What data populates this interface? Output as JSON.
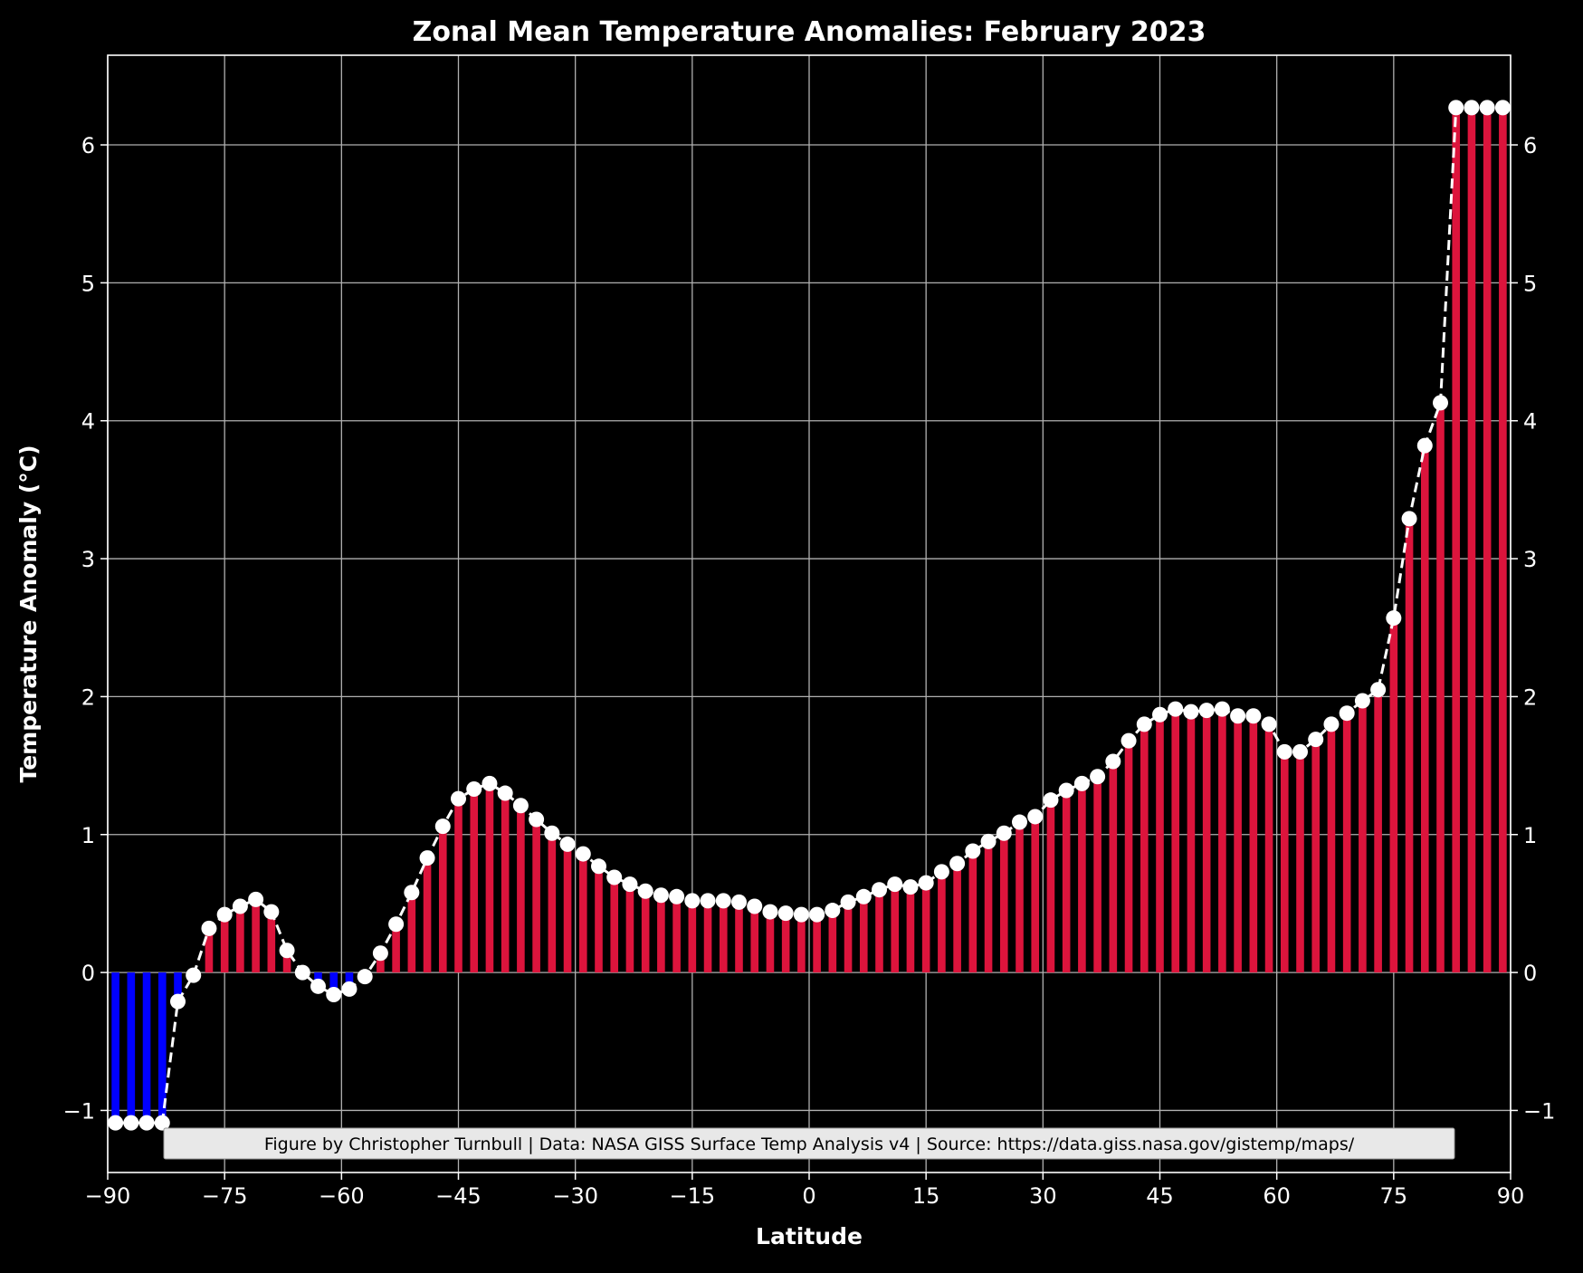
{
  "chart_data": {
    "type": "bar",
    "title": "Zonal Mean Temperature Anomalies: February 2023",
    "xlabel": "Latitude",
    "ylabel": "Temperature Anomaly (°C)",
    "xlim": [
      -90,
      90
    ],
    "ylim": [
      -1.45,
      6.65
    ],
    "grid": true,
    "x_ticks": [
      -90,
      -75,
      -60,
      -45,
      -30,
      -15,
      0,
      15,
      30,
      45,
      60,
      75,
      90
    ],
    "x_tick_labels": [
      "−90",
      "−75",
      "−60",
      "−45",
      "−30",
      "−15",
      "0",
      "15",
      "30",
      "45",
      "60",
      "75",
      "90"
    ],
    "y_ticks": [
      -1,
      0,
      1,
      2,
      3,
      4,
      5,
      6
    ],
    "y_tick_labels": [
      "−1",
      "0",
      "1",
      "2",
      "3",
      "4",
      "5",
      "6"
    ],
    "colors": {
      "positive_bar": "#dc143c",
      "negative_bar": "#0000ff",
      "line": "#ffffff",
      "marker": "#ffffff",
      "grid": "#b0b0b0",
      "background": "#000000"
    },
    "series": [
      {
        "x": [
          -89,
          -87,
          -85,
          -83,
          -81,
          -79,
          -77,
          -75,
          -73,
          -71,
          -69,
          -67,
          -65,
          -63,
          -61,
          -59,
          -57,
          -55,
          -53,
          -51,
          -49,
          -47,
          -45,
          -43,
          -41,
          -39,
          -37,
          -35,
          -33,
          -31,
          -29,
          -27,
          -25,
          -23,
          -21,
          -19,
          -17,
          -15,
          -13,
          -11,
          -9,
          -7,
          -5,
          -3,
          -1,
          1,
          3,
          5,
          7,
          9,
          11,
          13,
          15,
          17,
          19,
          21,
          23,
          25,
          27,
          29,
          31,
          33,
          35,
          37,
          39,
          41,
          43,
          45,
          47,
          49,
          51,
          53,
          55,
          57,
          59,
          61,
          63,
          65,
          67,
          69,
          71,
          73,
          75,
          77,
          79,
          81,
          83,
          85,
          87,
          89
        ],
        "values": [
          -1.09,
          -1.09,
          -1.09,
          -1.09,
          -0.21,
          -0.02,
          0.32,
          0.42,
          0.48,
          0.53,
          0.44,
          0.16,
          0.0,
          -0.1,
          -0.16,
          -0.12,
          -0.03,
          0.14,
          0.35,
          0.58,
          0.83,
          1.06,
          1.26,
          1.33,
          1.37,
          1.3,
          1.21,
          1.11,
          1.01,
          0.93,
          0.86,
          0.77,
          0.69,
          0.64,
          0.59,
          0.56,
          0.55,
          0.52,
          0.52,
          0.52,
          0.51,
          0.48,
          0.44,
          0.43,
          0.42,
          0.42,
          0.45,
          0.51,
          0.55,
          0.6,
          0.64,
          0.62,
          0.65,
          0.73,
          0.79,
          0.88,
          0.95,
          1.01,
          1.09,
          1.13,
          1.25,
          1.32,
          1.37,
          1.42,
          1.53,
          1.68,
          1.8,
          1.87,
          1.91,
          1.89,
          1.9,
          1.91,
          1.86,
          1.86,
          1.8,
          1.6,
          1.6,
          1.69,
          1.8,
          1.88,
          1.97,
          2.05,
          2.57,
          3.29,
          3.82,
          4.13,
          6.27,
          6.27,
          6.27,
          6.27
        ]
      }
    ]
  },
  "credit": "Figure by Christopher Turnbull | Data: NASA GISS Surface Temp Analysis v4 | Source: https://data.giss.nasa.gov/gistemp/maps/"
}
